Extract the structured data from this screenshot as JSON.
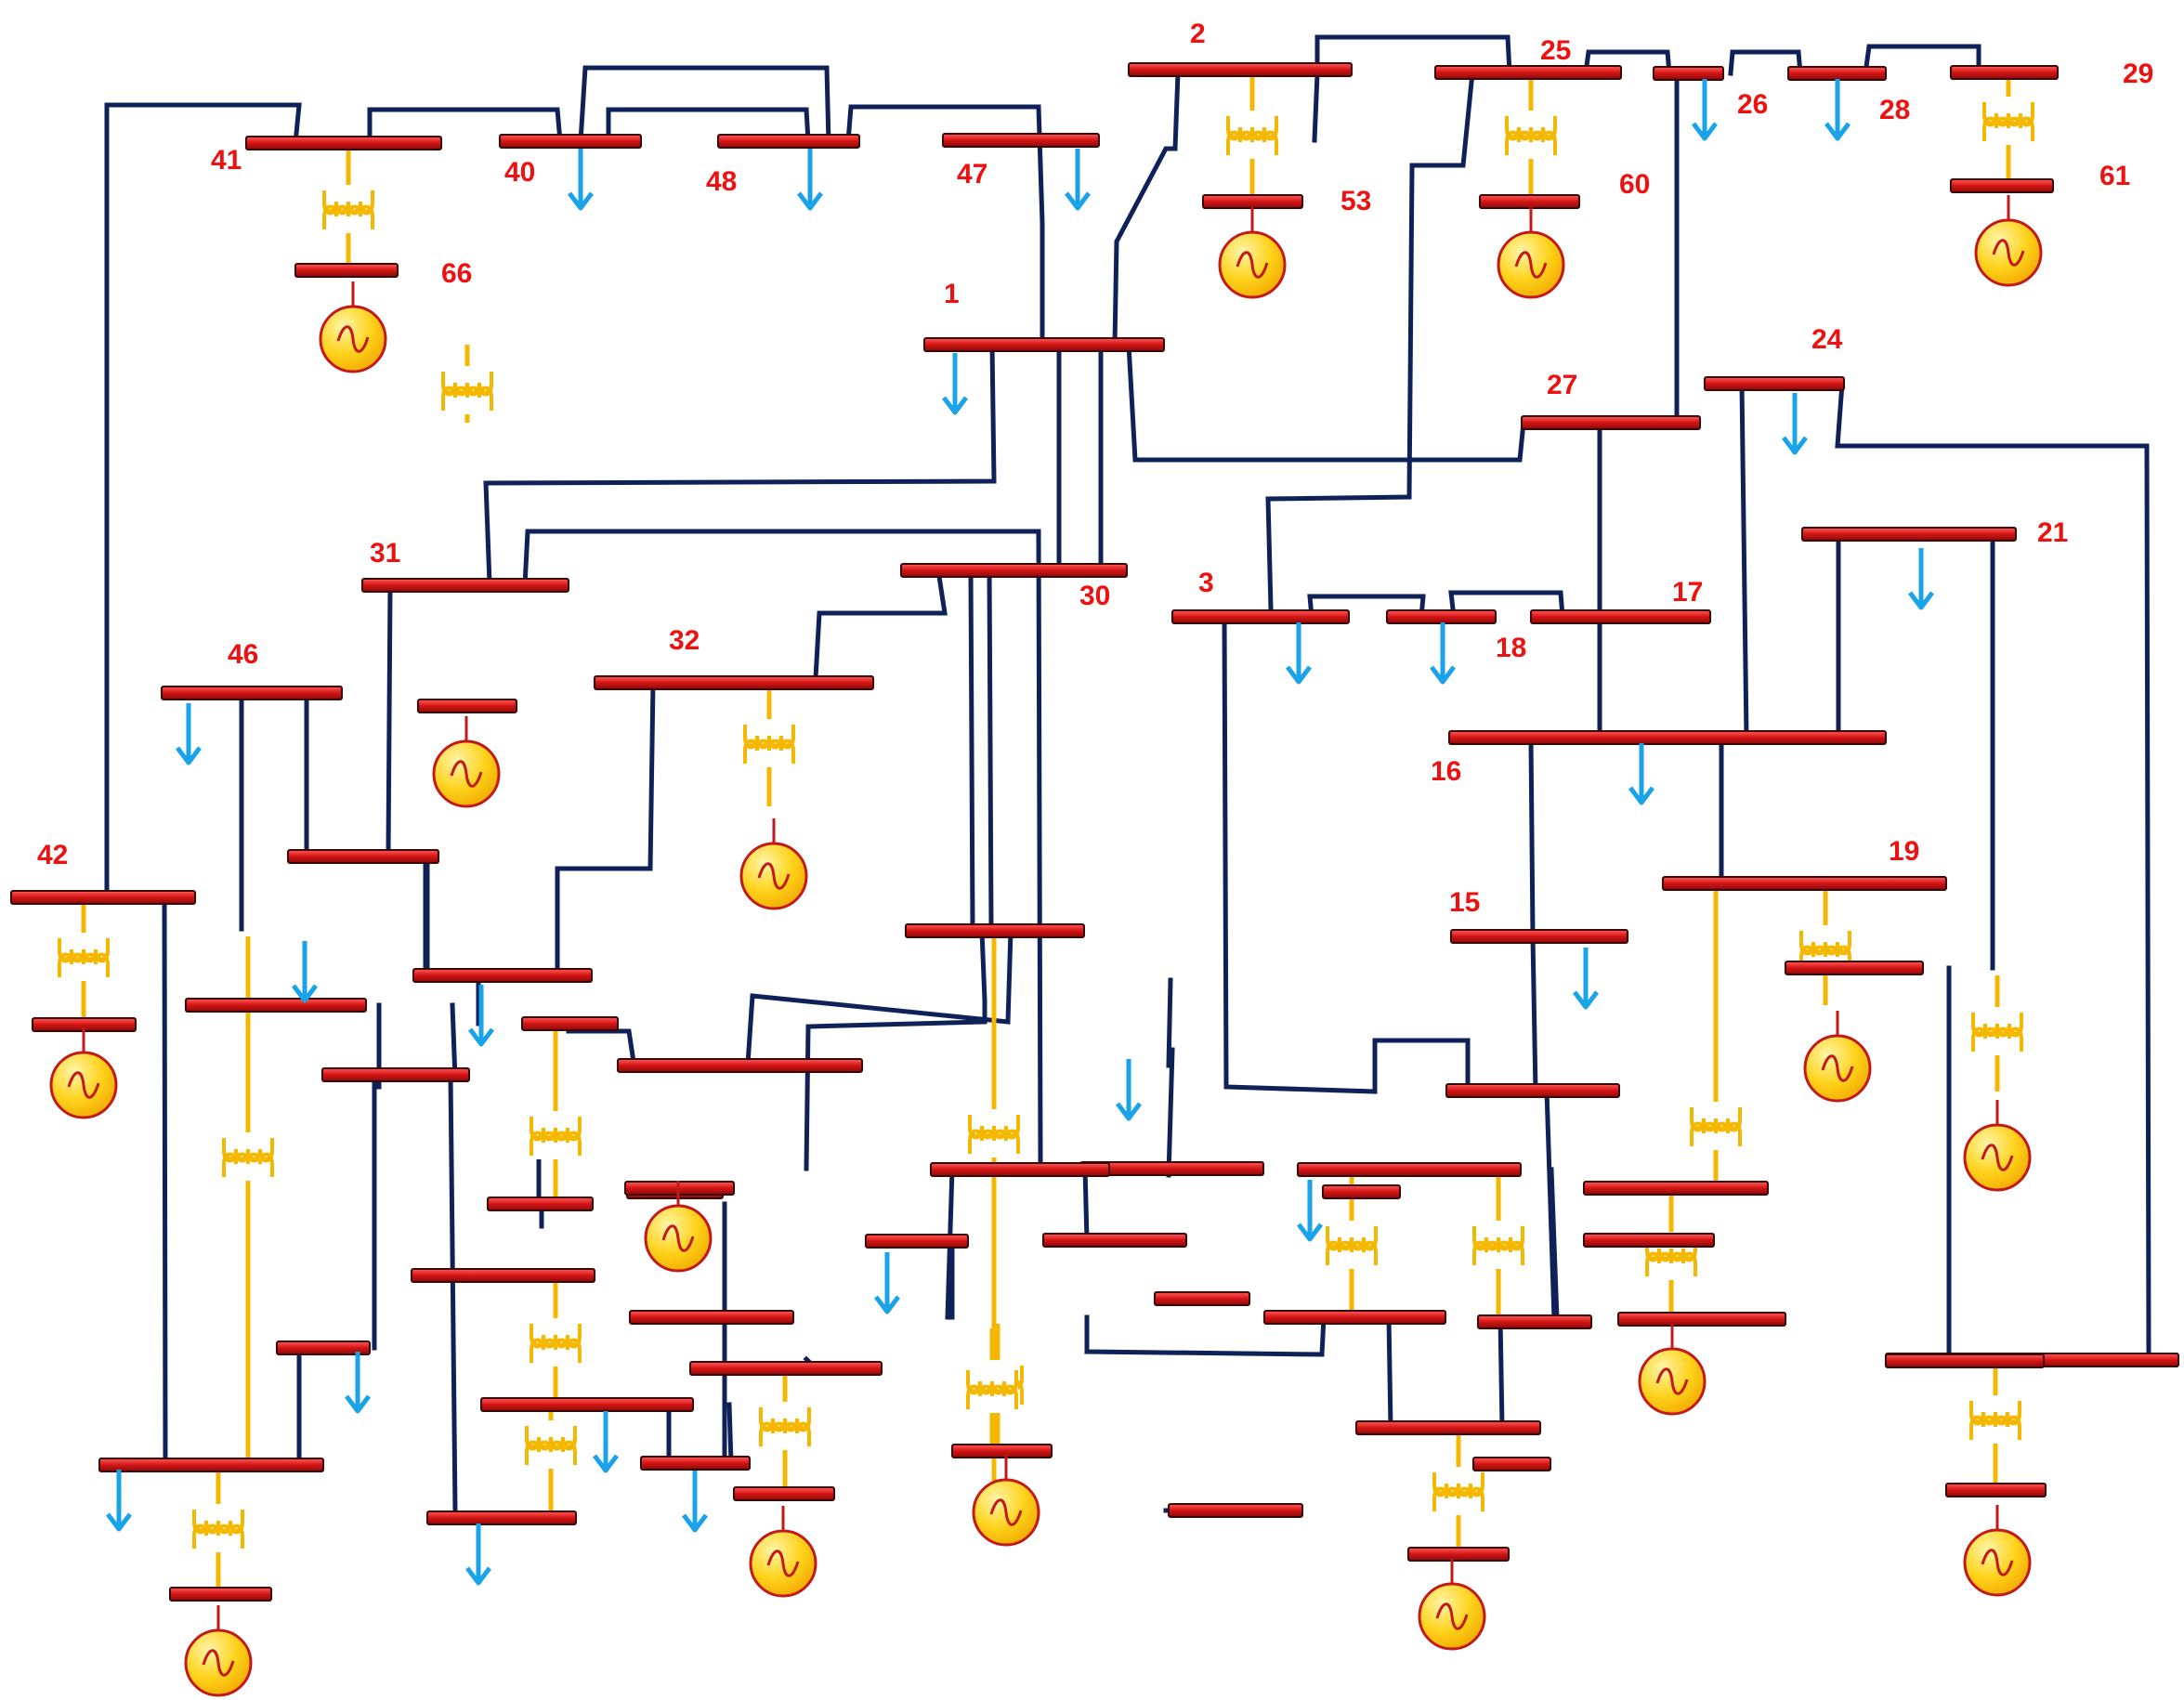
{
  "diagram": {
    "colors": {
      "background": "#ffffff",
      "line": "#0f2159",
      "bus": "#e01b1b",
      "transformer": "#f5b800",
      "load_arrow": "#1aa3e8",
      "generator_fill": "#ffd21a",
      "generator_stroke": "#c21a1a",
      "label": "#ee1111"
    },
    "bus_labels": [
      {
        "id": "2",
        "text": "2"
      },
      {
        "id": "25",
        "text": "25"
      },
      {
        "id": "26",
        "text": "26"
      },
      {
        "id": "28",
        "text": "28"
      },
      {
        "id": "29",
        "text": "29"
      },
      {
        "id": "41",
        "text": "41"
      },
      {
        "id": "40",
        "text": "40"
      },
      {
        "id": "48",
        "text": "48"
      },
      {
        "id": "47",
        "text": "47"
      },
      {
        "id": "53",
        "text": "53"
      },
      {
        "id": "60",
        "text": "60"
      },
      {
        "id": "61",
        "text": "61"
      },
      {
        "id": "66",
        "text": "66"
      },
      {
        "id": "1",
        "text": "1"
      },
      {
        "id": "24",
        "text": "24"
      },
      {
        "id": "27",
        "text": "27"
      },
      {
        "id": "31",
        "text": "31"
      },
      {
        "id": "21",
        "text": "21"
      },
      {
        "id": "3",
        "text": "3"
      },
      {
        "id": "30",
        "text": "30"
      },
      {
        "id": "17",
        "text": "17"
      },
      {
        "id": "18",
        "text": "18"
      },
      {
        "id": "32",
        "text": "32"
      },
      {
        "id": "46",
        "text": "46"
      },
      {
        "id": "16",
        "text": "16"
      },
      {
        "id": "42",
        "text": "42"
      },
      {
        "id": "19",
        "text": "19"
      },
      {
        "id": "15",
        "text": "15"
      }
    ]
  }
}
